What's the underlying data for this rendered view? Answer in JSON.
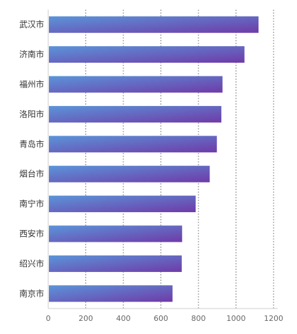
{
  "chart_data": {
    "type": "bar",
    "orientation": "horizontal",
    "categories": [
      "武汉市",
      "济南市",
      "福州市",
      "洛阳市",
      "青岛市",
      "烟台市",
      "南宁市",
      "西安市",
      "绍兴市",
      "南京市"
    ],
    "values": [
      1120,
      1045,
      928,
      922,
      898,
      860,
      785,
      713,
      711,
      662
    ],
    "xlim": [
      0,
      1200
    ],
    "xticks": [
      "0",
      "200",
      "400",
      "600",
      "800",
      "1000",
      "1200"
    ],
    "grid": true,
    "grid_style": "dashed vertical",
    "title": "",
    "xlabel": "",
    "ylabel": "",
    "colors": {
      "bar_start": "#5b95d9",
      "bar_end": "#6f3aa8",
      "axis": "#cccccc",
      "grid": "#888888"
    }
  }
}
